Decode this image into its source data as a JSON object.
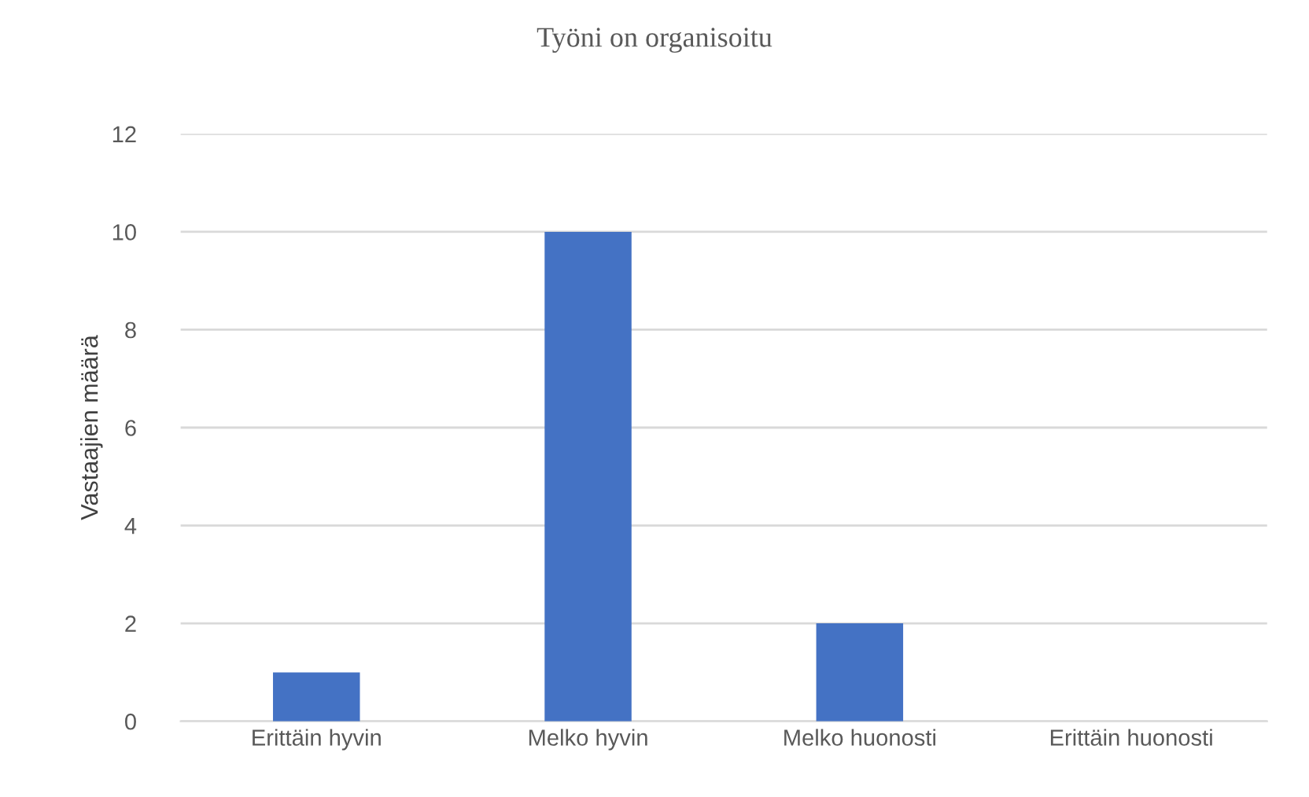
{
  "chart_data": {
    "type": "bar",
    "title": "Työni on organisoitu",
    "ylabel": "Vastaajien määrä",
    "categories": [
      "Erittäin hyvin",
      "Melko hyvin",
      "Melko huonosti",
      "Erittäin huonosti"
    ],
    "values": [
      1,
      10,
      2,
      0
    ],
    "color": "#4472c4",
    "ylim": [
      0,
      12
    ],
    "yticks": [
      0,
      2,
      4,
      6,
      8,
      10,
      12
    ],
    "grid": "y"
  }
}
